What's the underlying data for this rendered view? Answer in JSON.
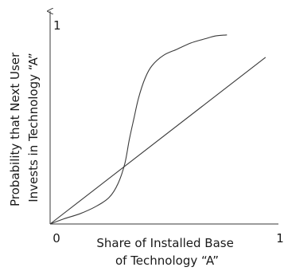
{
  "chart_data": {
    "type": "line",
    "title": "",
    "xlabel_lines": [
      "Share of Installed Base",
      "of Technology “A”"
    ],
    "ylabel_lines": [
      "Probability that Next User",
      "Invests in Technology “A”"
    ],
    "x_ticks": [
      {
        "value": 0,
        "label": "0"
      },
      {
        "value": 1,
        "label": "1"
      }
    ],
    "y_ticks": [
      {
        "value": 1,
        "label": "1"
      }
    ],
    "xlim": [
      0,
      1
    ],
    "ylim": [
      0,
      1
    ],
    "grid": false,
    "legend": "none",
    "colors": {
      "line": "#3a3a3a",
      "axis": "#3a3a3a",
      "text": "#1a1a1a"
    },
    "series": [
      {
        "x": [
          0,
          0.95
        ],
        "y": [
          0,
          0.82
        ]
      },
      {
        "x": [
          0,
          0.06,
          0.13,
          0.2,
          0.26,
          0.3,
          0.33,
          0.35,
          0.37,
          0.39,
          0.42,
          0.45,
          0.5,
          0.56,
          0.62,
          0.68,
          0.73,
          0.78
        ],
        "y": [
          0,
          0.025,
          0.05,
          0.085,
          0.13,
          0.2,
          0.3,
          0.42,
          0.52,
          0.62,
          0.72,
          0.78,
          0.83,
          0.86,
          0.89,
          0.91,
          0.925,
          0.93
        ]
      }
    ]
  }
}
